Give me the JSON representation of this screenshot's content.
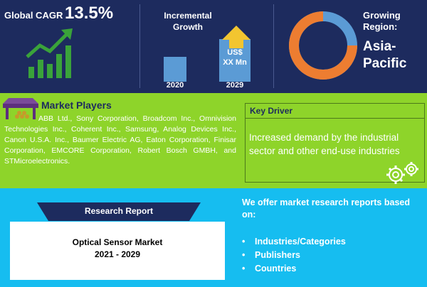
{
  "colors": {
    "navy": "#1d2b5e",
    "green": "#8ed42a",
    "cyan": "#16bdf0",
    "bar_blue": "#5b9bd5",
    "arrow_yellow": "#f2c530",
    "donut_orange": "#ed7d31",
    "donut_blue": "#5b9bd5"
  },
  "top": {
    "cagr_label": "Global CAGR",
    "cagr_value": "13.5%",
    "incremental_title": "Incremental Growth",
    "bar_label_line1": "US$",
    "bar_label_line2": "XX Mn",
    "year_start": "2020",
    "year_end": "2029",
    "region_label_line1": "Growing",
    "region_label_line2": "Region:",
    "region_value_line1": "Asia-",
    "region_value_line2": "Pacific"
  },
  "icons": {
    "growth": "growth-chart-icon",
    "players": "market-stall-icon",
    "driver": "gears-icon"
  },
  "players": {
    "title": "Market Players",
    "text": "ABB Ltd., Sony Corporation, Broadcom Inc., Omnivision Technologies Inc., Coherent Inc., Samsung, Analog Devices Inc., Canon U.S.A. Inc., Baumer Electric AG, Eaton Corporation, Finisar Corporation, EMCORE Corporation, Robert Bosch GMBH, and STMicroelectronics."
  },
  "driver": {
    "title": "Key Driver",
    "text": "Increased demand by the industrial sector and other end-use industries"
  },
  "report": {
    "banner": "Research Report",
    "title_line1": "Optical Sensor Market",
    "title_line2": "2021 - 2029"
  },
  "offer": {
    "title": "We offer market research reports based on:",
    "items": [
      "Industries/Categories",
      "Publishers",
      "Countries"
    ]
  }
}
